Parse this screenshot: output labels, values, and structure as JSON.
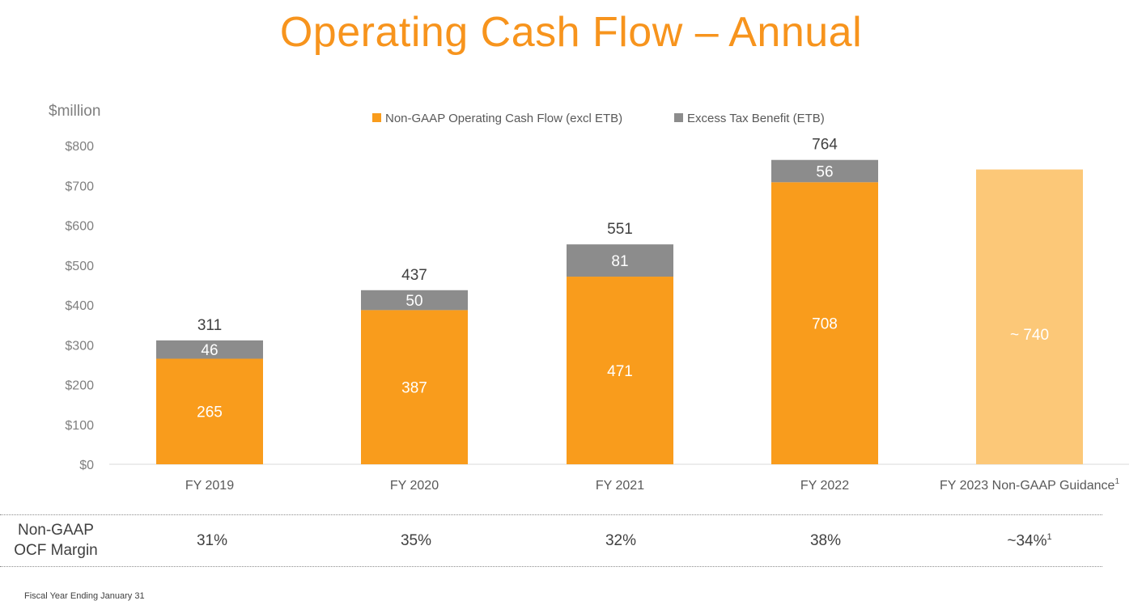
{
  "title": "Operating Cash Flow – Annual",
  "chart_data": {
    "type": "bar",
    "stacked": true,
    "title": "Operating Cash Flow – Annual",
    "ylabel": "$million",
    "ylim": [
      0,
      800
    ],
    "yticks": [
      "$0",
      "$100",
      "$200",
      "$300",
      "$400",
      "$500",
      "$600",
      "$700",
      "$800"
    ],
    "ytick_values": [
      0,
      100,
      200,
      300,
      400,
      500,
      600,
      700,
      800
    ],
    "categories": [
      "FY 2019",
      "FY 2020",
      "FY 2021",
      "FY 2022",
      "FY 2023 Non-GAAP Guidance"
    ],
    "category_superscripts": [
      "",
      "",
      "",
      "",
      "1"
    ],
    "series": [
      {
        "name": "Non-GAAP Operating Cash Flow (excl ETB)",
        "color": "#f99c1c",
        "values": [
          265,
          387,
          471,
          708,
          null
        ]
      },
      {
        "name": "Excess Tax Benefit (ETB)",
        "color": "#8c8c8c",
        "values": [
          46,
          50,
          81,
          56,
          null
        ]
      }
    ],
    "guidance": {
      "category": "FY 2023 Non-GAAP Guidance",
      "value": 740,
      "label": "~ 740",
      "color": "#fcc878"
    },
    "segment_labels": [
      [
        "265",
        "387",
        "471",
        "708"
      ],
      [
        "46",
        "50",
        "81",
        "56"
      ]
    ],
    "totals": [
      311,
      437,
      551,
      764
    ],
    "total_labels": [
      "311",
      "437",
      "551",
      "764"
    ],
    "legend_position": "top-center",
    "colors": {
      "orange": "#f99c1c",
      "gray": "#8c8c8c",
      "light_orange": "#fcc878",
      "title": "#f7941d"
    }
  },
  "margin_row": {
    "label_line1": "Non-GAAP",
    "label_line2": "OCF Margin",
    "values": [
      "31%",
      "35%",
      "32%",
      "38%",
      "~34%"
    ],
    "superscripts": [
      "",
      "",
      "",
      "",
      "1"
    ]
  },
  "footnote": "Fiscal Year Ending January 31"
}
